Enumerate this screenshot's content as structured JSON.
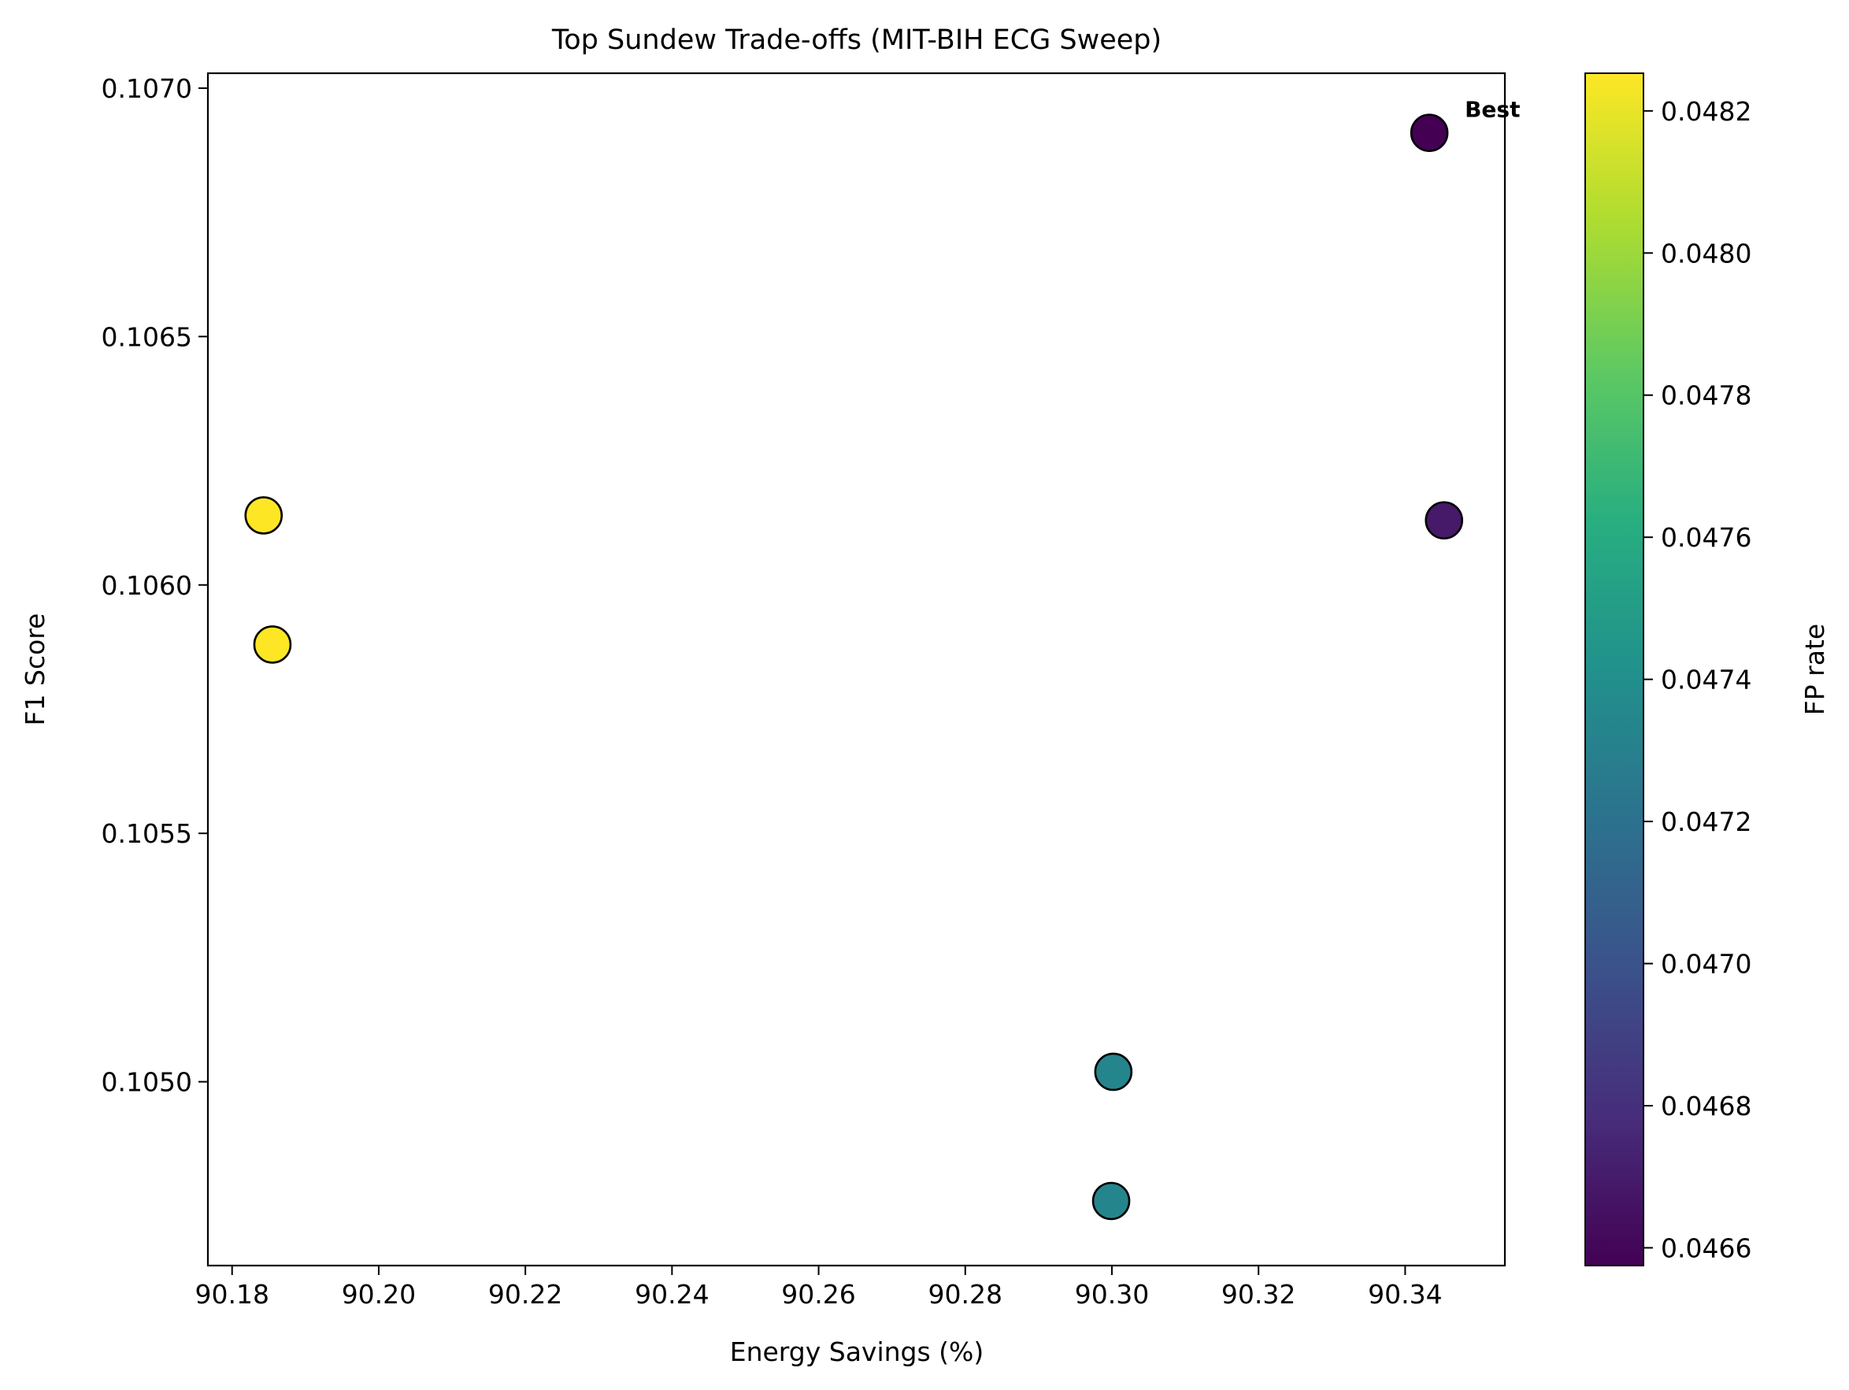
{
  "chart_data": {
    "type": "scatter",
    "title": "Top Sundew Trade-offs (MIT-BIH ECG Sweep)",
    "xlabel": "Energy Savings (%)",
    "ylabel": "F1 Score",
    "xlim": [
      90.1767,
      90.3536
    ],
    "ylim": [
      0.10463,
      0.10703
    ],
    "xticks": [
      90.18,
      90.2,
      90.22,
      90.24,
      90.26,
      90.28,
      90.3,
      90.32,
      90.34
    ],
    "xtick_labels": [
      "90.18",
      "90.20",
      "90.22",
      "90.24",
      "90.26",
      "90.28",
      "90.30",
      "90.32",
      "90.34"
    ],
    "yticks": [
      0.105,
      0.1055,
      0.106,
      0.1065,
      0.107
    ],
    "ytick_labels": [
      "0.1050",
      "0.1055",
      "0.1060",
      "0.1065",
      "0.1070"
    ],
    "grid": false,
    "colormap": "viridis",
    "colorbar": {
      "label": "FP rate",
      "range": [
        0.046575,
        0.048253
      ],
      "ticks": [
        0.0466,
        0.0468,
        0.047,
        0.0472,
        0.0474,
        0.0476,
        0.0478,
        0.048,
        0.0482
      ],
      "tick_labels": [
        "0.0466",
        "0.0468",
        "0.0470",
        "0.0472",
        "0.0474",
        "0.0476",
        "0.0478",
        "0.0480",
        "0.0482"
      ]
    },
    "points": [
      {
        "x": 90.3433,
        "y": 0.10691,
        "fp_rate": 0.046575
      },
      {
        "x": 90.3453,
        "y": 0.10613,
        "fp_rate": 0.04669
      },
      {
        "x": 90.1843,
        "y": 0.10614,
        "fp_rate": 0.048253
      },
      {
        "x": 90.1855,
        "y": 0.10588,
        "fp_rate": 0.048253
      },
      {
        "x": 90.3002,
        "y": 0.10502,
        "fp_rate": 0.04733
      },
      {
        "x": 90.2999,
        "y": 0.10476,
        "fp_rate": 0.04733
      }
    ],
    "annotation": {
      "text": "Best",
      "point_index": 0
    }
  }
}
